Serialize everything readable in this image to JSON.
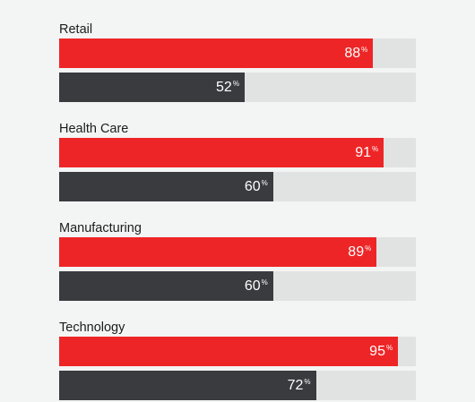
{
  "chart_data": {
    "type": "bar",
    "orientation": "horizontal",
    "xlim": [
      0,
      100
    ],
    "colors": [
      "#ee2526",
      "#3a3b3f"
    ],
    "track_color": "#e1e3e3",
    "unit": "%",
    "categories": [
      "Retail",
      "Health Care",
      "Manufacturing",
      "Technology"
    ],
    "series": [
      {
        "values": [
          88,
          91,
          89,
          95
        ]
      },
      {
        "values": [
          52,
          60,
          60,
          72
        ]
      }
    ]
  }
}
